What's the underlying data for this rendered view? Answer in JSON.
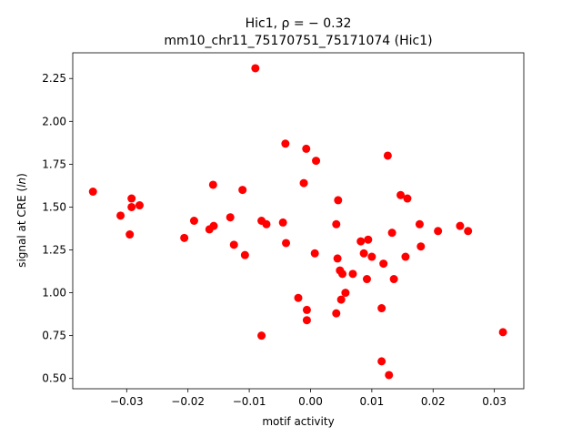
{
  "chart_data": {
    "type": "scatter",
    "title_line1": "Hic1, ρ = − 0.32",
    "title_line2": "mm10_chr11_75170751_75171074 (Hic1)",
    "xlabel": "motif activity",
    "ylabel": "signal at CRE (ln)",
    "xlim": [
      -0.0388,
      0.0348
    ],
    "ylim": [
      0.44,
      2.4
    ],
    "x_ticks": [
      -0.03,
      -0.02,
      -0.01,
      0.0,
      0.01,
      0.02,
      0.03
    ],
    "x_tick_labels": [
      "−0.03",
      "−0.02",
      "−0.01",
      "0.00",
      "0.01",
      "0.02",
      "0.03"
    ],
    "y_ticks": [
      0.5,
      0.75,
      1.0,
      1.25,
      1.5,
      1.75,
      2.0,
      2.25
    ],
    "y_tick_labels": [
      "0.50",
      "0.75",
      "1.00",
      "1.25",
      "1.50",
      "1.75",
      "2.00",
      "2.25"
    ],
    "grid": false,
    "marker_color": "#ff0000",
    "points": [
      {
        "x": -0.0355,
        "y": 1.59
      },
      {
        "x": -0.031,
        "y": 1.45
      },
      {
        "x": -0.0295,
        "y": 1.34
      },
      {
        "x": -0.0292,
        "y": 1.5
      },
      {
        "x": -0.0292,
        "y": 1.55
      },
      {
        "x": -0.0279,
        "y": 1.51
      },
      {
        "x": -0.0206,
        "y": 1.32
      },
      {
        "x": -0.019,
        "y": 1.42
      },
      {
        "x": -0.0165,
        "y": 1.37
      },
      {
        "x": -0.0159,
        "y": 1.63
      },
      {
        "x": -0.0158,
        "y": 1.39
      },
      {
        "x": -0.0131,
        "y": 1.44
      },
      {
        "x": -0.0125,
        "y": 1.28
      },
      {
        "x": -0.0111,
        "y": 1.6
      },
      {
        "x": -0.0107,
        "y": 1.22
      },
      {
        "x": -0.009,
        "y": 2.31
      },
      {
        "x": -0.008,
        "y": 1.42
      },
      {
        "x": -0.008,
        "y": 0.75
      },
      {
        "x": -0.0072,
        "y": 1.4
      },
      {
        "x": -0.0045,
        "y": 1.41
      },
      {
        "x": -0.0041,
        "y": 1.87
      },
      {
        "x": -0.004,
        "y": 1.29
      },
      {
        "x": -0.002,
        "y": 0.97
      },
      {
        "x": -0.0011,
        "y": 1.64
      },
      {
        "x": -0.0007,
        "y": 1.84
      },
      {
        "x": -0.0006,
        "y": 0.9
      },
      {
        "x": -0.0006,
        "y": 0.84
      },
      {
        "x": 0.0007,
        "y": 1.23
      },
      {
        "x": 0.0009,
        "y": 1.77
      },
      {
        "x": 0.0042,
        "y": 1.4
      },
      {
        "x": 0.0042,
        "y": 0.88
      },
      {
        "x": 0.0044,
        "y": 1.2
      },
      {
        "x": 0.0045,
        "y": 1.54
      },
      {
        "x": 0.0048,
        "y": 1.13
      },
      {
        "x": 0.005,
        "y": 0.96
      },
      {
        "x": 0.0052,
        "y": 1.11
      },
      {
        "x": 0.0057,
        "y": 1.0
      },
      {
        "x": 0.0069,
        "y": 1.11
      },
      {
        "x": 0.0082,
        "y": 1.3
      },
      {
        "x": 0.0087,
        "y": 1.23
      },
      {
        "x": 0.0092,
        "y": 1.08
      },
      {
        "x": 0.0094,
        "y": 1.31
      },
      {
        "x": 0.01,
        "y": 1.21
      },
      {
        "x": 0.0116,
        "y": 0.91
      },
      {
        "x": 0.0116,
        "y": 0.6
      },
      {
        "x": 0.0119,
        "y": 1.17
      },
      {
        "x": 0.0126,
        "y": 1.8
      },
      {
        "x": 0.0128,
        "y": 0.52
      },
      {
        "x": 0.0133,
        "y": 1.35
      },
      {
        "x": 0.0136,
        "y": 1.08
      },
      {
        "x": 0.0147,
        "y": 1.57
      },
      {
        "x": 0.0155,
        "y": 1.21
      },
      {
        "x": 0.0158,
        "y": 1.55
      },
      {
        "x": 0.0178,
        "y": 1.4
      },
      {
        "x": 0.018,
        "y": 1.27
      },
      {
        "x": 0.0208,
        "y": 1.36
      },
      {
        "x": 0.0244,
        "y": 1.39
      },
      {
        "x": 0.0257,
        "y": 1.36
      },
      {
        "x": 0.0314,
        "y": 0.77
      }
    ]
  }
}
